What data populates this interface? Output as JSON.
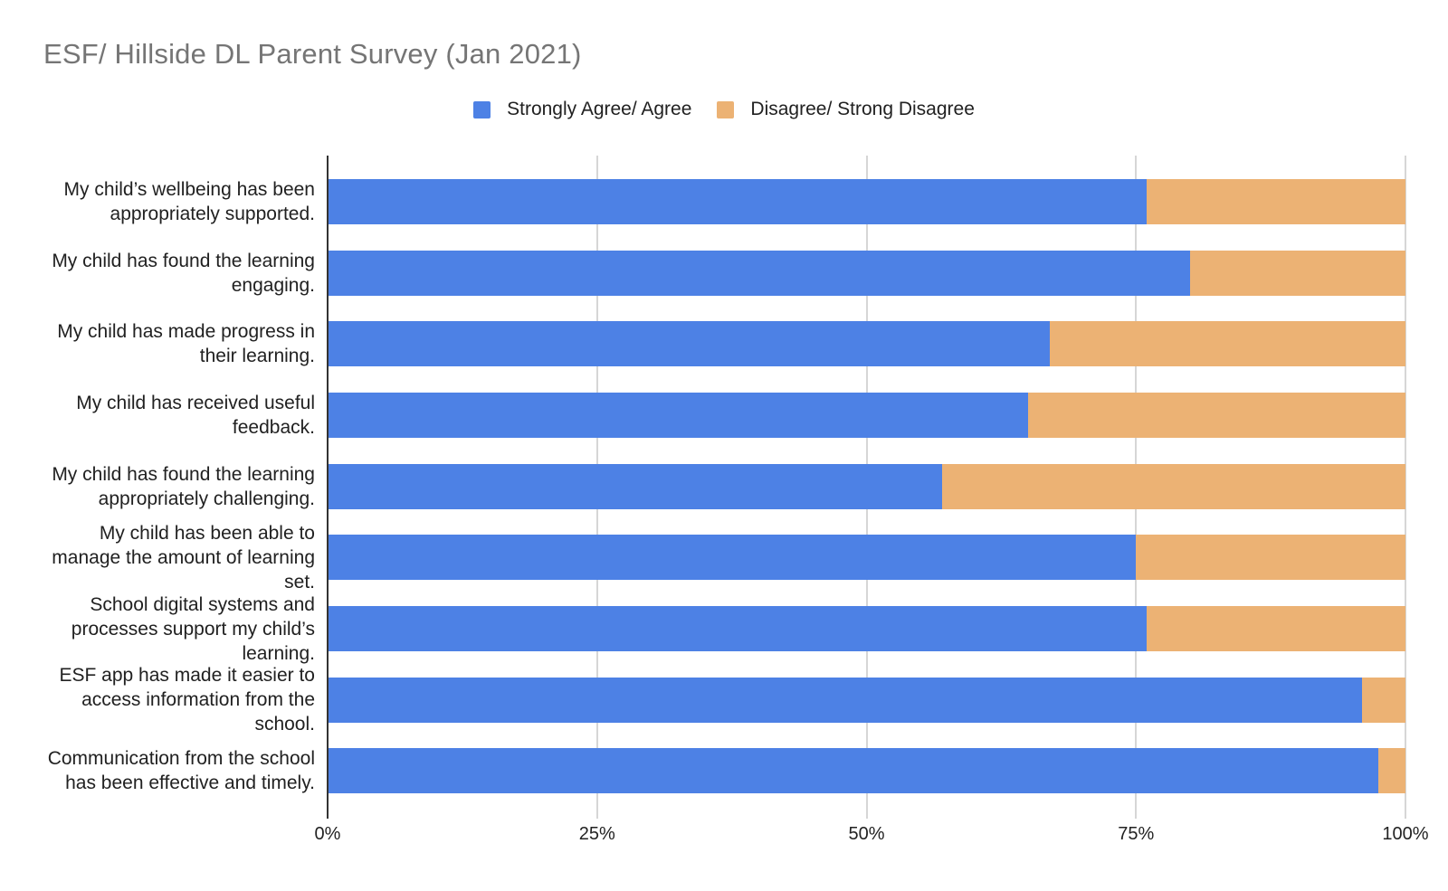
{
  "chart": {
    "title": "ESF/ Hillside DL Parent Survey (Jan 2021)"
  },
  "legend": {
    "items": [
      {
        "label": "Strongly Agree/ Agree",
        "color": "#4d81e5"
      },
      {
        "label": "Disagree/ Strong Disagree",
        "color": "#ecb274"
      }
    ]
  },
  "chart_data": {
    "type": "bar",
    "orientation": "horizontal",
    "stacked": true,
    "stacked_total": 100,
    "title": "ESF/ Hillside DL Parent Survey (Jan 2021)",
    "categories": [
      "My child’s wellbeing has been appropriately supported.",
      "My child has found the learning engaging.",
      "My child has made progress in their learning.",
      "My child has received useful feedback.",
      "My child has found the learning appropriately challenging.",
      "My child has been able to manage the amount of learning set.",
      "School digital systems and processes support my child’s learning.",
      "ESF app has made it easier to access information from the school.",
      "Communication from the school has been effective and timely."
    ],
    "series": [
      {
        "name": "Strongly Agree/ Agree",
        "color": "#4d81e5",
        "values": [
          76,
          80,
          67,
          65,
          57,
          75,
          76,
          96,
          97.5
        ]
      },
      {
        "name": "Disagree/ Strong Disagree",
        "color": "#ecb274",
        "values": [
          24,
          20,
          33,
          35,
          43,
          25,
          24,
          4,
          2.5
        ]
      }
    ],
    "x_axis": {
      "min": 0,
      "max": 100,
      "unit": "%",
      "ticks": [
        {
          "value": 0,
          "label": "0%"
        },
        {
          "value": 25,
          "label": "25%"
        },
        {
          "value": 50,
          "label": "50%"
        },
        {
          "value": 75,
          "label": "75%"
        },
        {
          "value": 100,
          "label": "100%"
        }
      ]
    },
    "grid": true,
    "legend_position": "top",
    "colors": {
      "title_text": "#757575",
      "label_text": "#212121",
      "axis_line": "#333333",
      "gridline": "#d6d6d6",
      "background": "#ffffff"
    }
  }
}
